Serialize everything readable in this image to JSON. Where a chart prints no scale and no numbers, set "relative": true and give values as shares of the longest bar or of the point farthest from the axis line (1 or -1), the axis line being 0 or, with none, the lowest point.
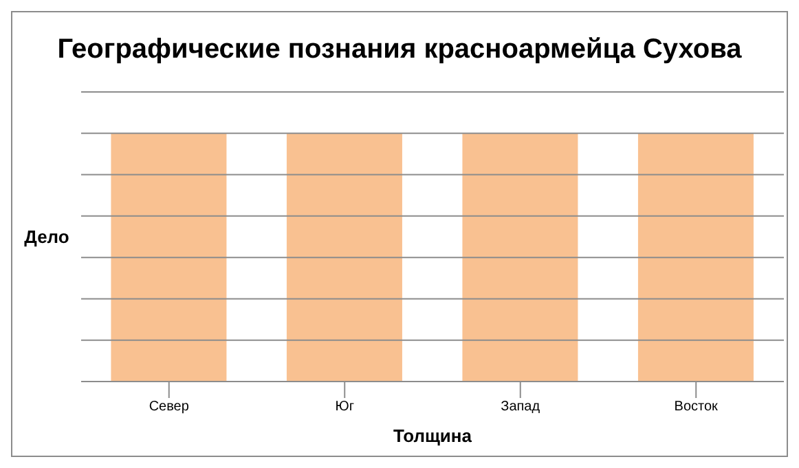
{
  "chart_data": {
    "type": "bar",
    "title": "Географические познания красноармейца Сухова",
    "xlabel": "Толщина",
    "ylabel": "Дело",
    "categories": [
      "Север",
      "Юг",
      "Запад",
      "Восток"
    ],
    "values": [
      1,
      1,
      1,
      1
    ],
    "color": "#f9c191",
    "relative": true,
    "grid": "y"
  }
}
